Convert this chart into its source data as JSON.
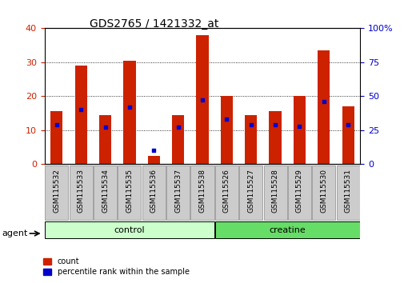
{
  "title": "GDS2765 / 1421332_at",
  "samples": [
    "GSM115532",
    "GSM115533",
    "GSM115534",
    "GSM115535",
    "GSM115536",
    "GSM115537",
    "GSM115538",
    "GSM115526",
    "GSM115527",
    "GSM115528",
    "GSM115529",
    "GSM115530",
    "GSM115531"
  ],
  "count_values": [
    15.5,
    29.0,
    14.5,
    30.5,
    2.5,
    14.5,
    38.0,
    20.0,
    14.5,
    15.5,
    20.0,
    33.5,
    17.0
  ],
  "percentile_values": [
    29,
    40,
    27,
    42,
    10,
    27,
    47,
    33,
    29,
    29,
    28,
    46,
    29
  ],
  "left_ylim": [
    0,
    40
  ],
  "right_ylim": [
    0,
    100
  ],
  "left_yticks": [
    0,
    10,
    20,
    30,
    40
  ],
  "right_yticks": [
    0,
    25,
    50,
    75,
    100
  ],
  "right_yticklabels": [
    "0",
    "25",
    "50",
    "75",
    "100%"
  ],
  "bar_color": "#cc2200",
  "dot_color": "#0000cc",
  "control_group": [
    0,
    1,
    2,
    3,
    4,
    5,
    6
  ],
  "creatine_group": [
    7,
    8,
    9,
    10,
    11,
    12
  ],
  "control_label": "control",
  "creatine_label": "creatine",
  "agent_label": "agent",
  "legend_count_label": "count",
  "legend_pct_label": "percentile rank within the sample",
  "control_color": "#ccffcc",
  "creatine_color": "#66dd66",
  "bar_width": 0.5,
  "grid_color": "black",
  "bg_color": "#ffffff",
  "tick_label_color_left": "#cc2200",
  "tick_label_color_right": "#0000cc",
  "label_box_color": "#cccccc"
}
